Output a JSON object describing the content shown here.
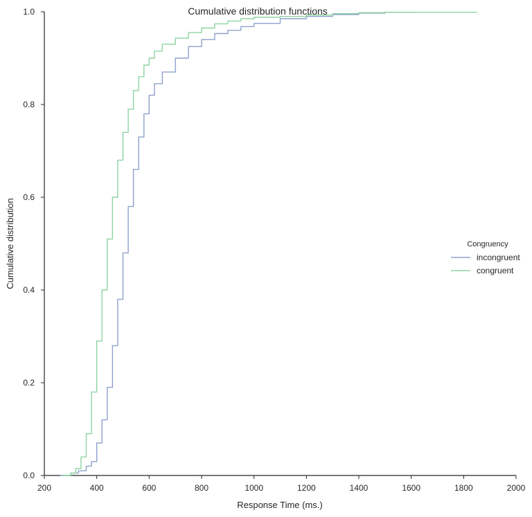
{
  "chart_data": {
    "type": "line",
    "title": "Cumulative distribution functions",
    "xlabel": "Response Time (ms.)",
    "ylabel": "Cumulative distribution",
    "xlim": [
      200,
      2000
    ],
    "ylim": [
      0.0,
      1.0
    ],
    "x_ticks": [
      "200",
      "400",
      "600",
      "800",
      "1000",
      "1200",
      "1400",
      "1600",
      "1800",
      "2000"
    ],
    "y_ticks": [
      "0.0",
      "0.2",
      "0.4",
      "0.6",
      "0.8",
      "1.0"
    ],
    "grid": false,
    "legend": {
      "title": "Congruency",
      "position": "right"
    },
    "series": [
      {
        "name": "incongruent",
        "color": "#8da0cb",
        "points": [
          [
            260,
            0.0
          ],
          [
            300,
            0.005
          ],
          [
            330,
            0.01
          ],
          [
            360,
            0.02
          ],
          [
            380,
            0.03
          ],
          [
            400,
            0.07
          ],
          [
            420,
            0.12
          ],
          [
            440,
            0.19
          ],
          [
            460,
            0.28
          ],
          [
            480,
            0.38
          ],
          [
            500,
            0.48
          ],
          [
            520,
            0.58
          ],
          [
            540,
            0.66
          ],
          [
            560,
            0.73
          ],
          [
            580,
            0.78
          ],
          [
            600,
            0.82
          ],
          [
            620,
            0.845
          ],
          [
            650,
            0.87
          ],
          [
            700,
            0.9
          ],
          [
            750,
            0.925
          ],
          [
            800,
            0.94
          ],
          [
            850,
            0.953
          ],
          [
            900,
            0.96
          ],
          [
            950,
            0.968
          ],
          [
            1000,
            0.975
          ],
          [
            1100,
            0.985
          ],
          [
            1200,
            0.99
          ],
          [
            1300,
            0.994
          ],
          [
            1400,
            0.997
          ],
          [
            1500,
            0.999
          ],
          [
            1610,
            1.0
          ]
        ]
      },
      {
        "name": "congruent",
        "color": "#8dd3a0",
        "points": [
          [
            270,
            0.0
          ],
          [
            300,
            0.005
          ],
          [
            320,
            0.015
          ],
          [
            340,
            0.04
          ],
          [
            360,
            0.09
          ],
          [
            380,
            0.18
          ],
          [
            400,
            0.29
          ],
          [
            420,
            0.4
          ],
          [
            440,
            0.51
          ],
          [
            460,
            0.6
          ],
          [
            480,
            0.68
          ],
          [
            500,
            0.74
          ],
          [
            520,
            0.79
          ],
          [
            540,
            0.83
          ],
          [
            560,
            0.86
          ],
          [
            580,
            0.885
          ],
          [
            600,
            0.9
          ],
          [
            620,
            0.915
          ],
          [
            650,
            0.93
          ],
          [
            700,
            0.943
          ],
          [
            750,
            0.955
          ],
          [
            800,
            0.965
          ],
          [
            850,
            0.974
          ],
          [
            900,
            0.98
          ],
          [
            950,
            0.985
          ],
          [
            1000,
            0.988
          ],
          [
            1100,
            0.99
          ],
          [
            1200,
            0.993
          ],
          [
            1300,
            0.996
          ],
          [
            1400,
            0.998
          ],
          [
            1500,
            0.999
          ],
          [
            1850,
            1.0
          ]
        ]
      }
    ]
  }
}
